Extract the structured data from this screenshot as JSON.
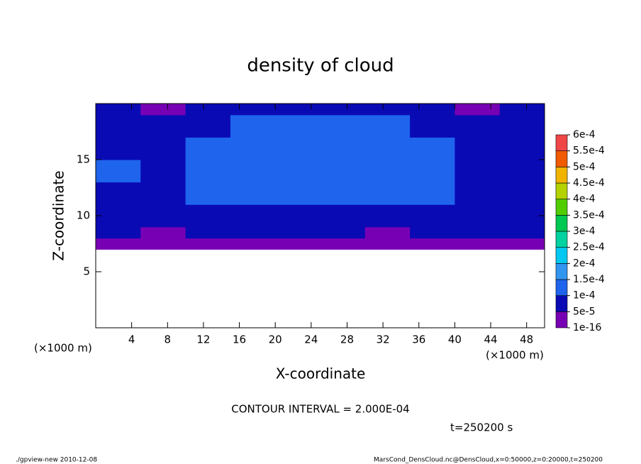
{
  "chart_data": {
    "type": "contour",
    "title": "density of cloud",
    "x_label": "X-coordinate",
    "y_label": "Z-coordinate",
    "x_unit": "(×1000 m)",
    "y_unit": "(×1000 m)",
    "contour_note": "CONTOUR INTERVAL = 2.000E-04",
    "time_note": "t=250200 s",
    "footer_left": "./gpview-new  2010-12-08",
    "footer_right": "MarsCond_DensCloud.nc@DensCloud,x=0:50000,z=0:20000,t=250200",
    "xlim": [
      0,
      50
    ],
    "ylim": [
      0,
      20
    ],
    "xticks": [
      4,
      8,
      12,
      16,
      20,
      24,
      28,
      32,
      36,
      40,
      44,
      48
    ],
    "yticks": [
      5,
      10,
      15
    ],
    "x_edges": [
      0,
      5,
      10,
      15,
      20,
      25,
      30,
      35,
      40,
      45,
      50
    ],
    "z_edges": [
      0,
      7,
      8,
      9,
      11,
      13,
      15,
      17,
      19,
      20
    ],
    "values": [
      [
        null,
        null,
        null,
        null,
        null,
        null,
        null,
        null,
        null,
        null
      ],
      [
        1e-10,
        1e-10,
        1e-10,
        1e-10,
        1e-10,
        1e-10,
        1e-10,
        1e-10,
        1e-10,
        1e-10
      ],
      [
        6e-05,
        4e-05,
        6e-05,
        6e-05,
        6e-05,
        6e-05,
        4e-05,
        6e-05,
        6e-05,
        6e-05
      ],
      [
        7e-05,
        6e-05,
        9e-05,
        9e-05,
        9e-05,
        9e-05,
        9e-05,
        8e-05,
        6e-05,
        6e-05
      ],
      [
        8e-05,
        7e-05,
        0.00011,
        0.00012,
        0.00012,
        0.00012,
        0.00012,
        0.00011,
        7e-05,
        8e-05
      ],
      [
        0.00011,
        8e-05,
        0.00012,
        0.00012,
        0.00012,
        0.00012,
        0.00012,
        0.00012,
        8e-05,
        9e-05
      ],
      [
        8e-05,
        8e-05,
        0.00011,
        0.00012,
        0.00012,
        0.00012,
        0.00012,
        0.00011,
        8e-05,
        8e-05
      ],
      [
        7e-05,
        6e-05,
        8e-05,
        0.00011,
        0.00011,
        0.00011,
        0.00011,
        8e-05,
        6e-05,
        7e-05
      ],
      [
        6e-05,
        1e-10,
        6e-05,
        6e-05,
        6e-05,
        6e-05,
        6e-05,
        6e-05,
        1e-10,
        6e-05
      ]
    ],
    "levels": [
      {
        "value": 1e-16,
        "label": "1e-16"
      },
      {
        "value": 5e-05,
        "label": "5e-5"
      },
      {
        "value": 0.0001,
        "label": "1e-4"
      },
      {
        "value": 0.00015,
        "label": "1.5e-4"
      },
      {
        "value": 0.0002,
        "label": "2e-4"
      },
      {
        "value": 0.00025,
        "label": "2.5e-4"
      },
      {
        "value": 0.0003,
        "label": "3e-4"
      },
      {
        "value": 0.00035,
        "label": "3.5e-4"
      },
      {
        "value": 0.0004,
        "label": "4e-4"
      },
      {
        "value": 0.00045,
        "label": "4.5e-4"
      },
      {
        "value": 0.0005,
        "label": "5e-4"
      },
      {
        "value": 0.00055,
        "label": "5.5e-4"
      },
      {
        "value": 0.0006,
        "label": "6e-4"
      }
    ],
    "level_colors": [
      "#7800b4",
      "#0a0ab4",
      "#1e64ec",
      "#3296f0",
      "#00c8f0",
      "#00d2a0",
      "#00c850",
      "#50cd00",
      "#b4d200",
      "#f0b400",
      "#f05a00",
      "#f04646"
    ]
  }
}
